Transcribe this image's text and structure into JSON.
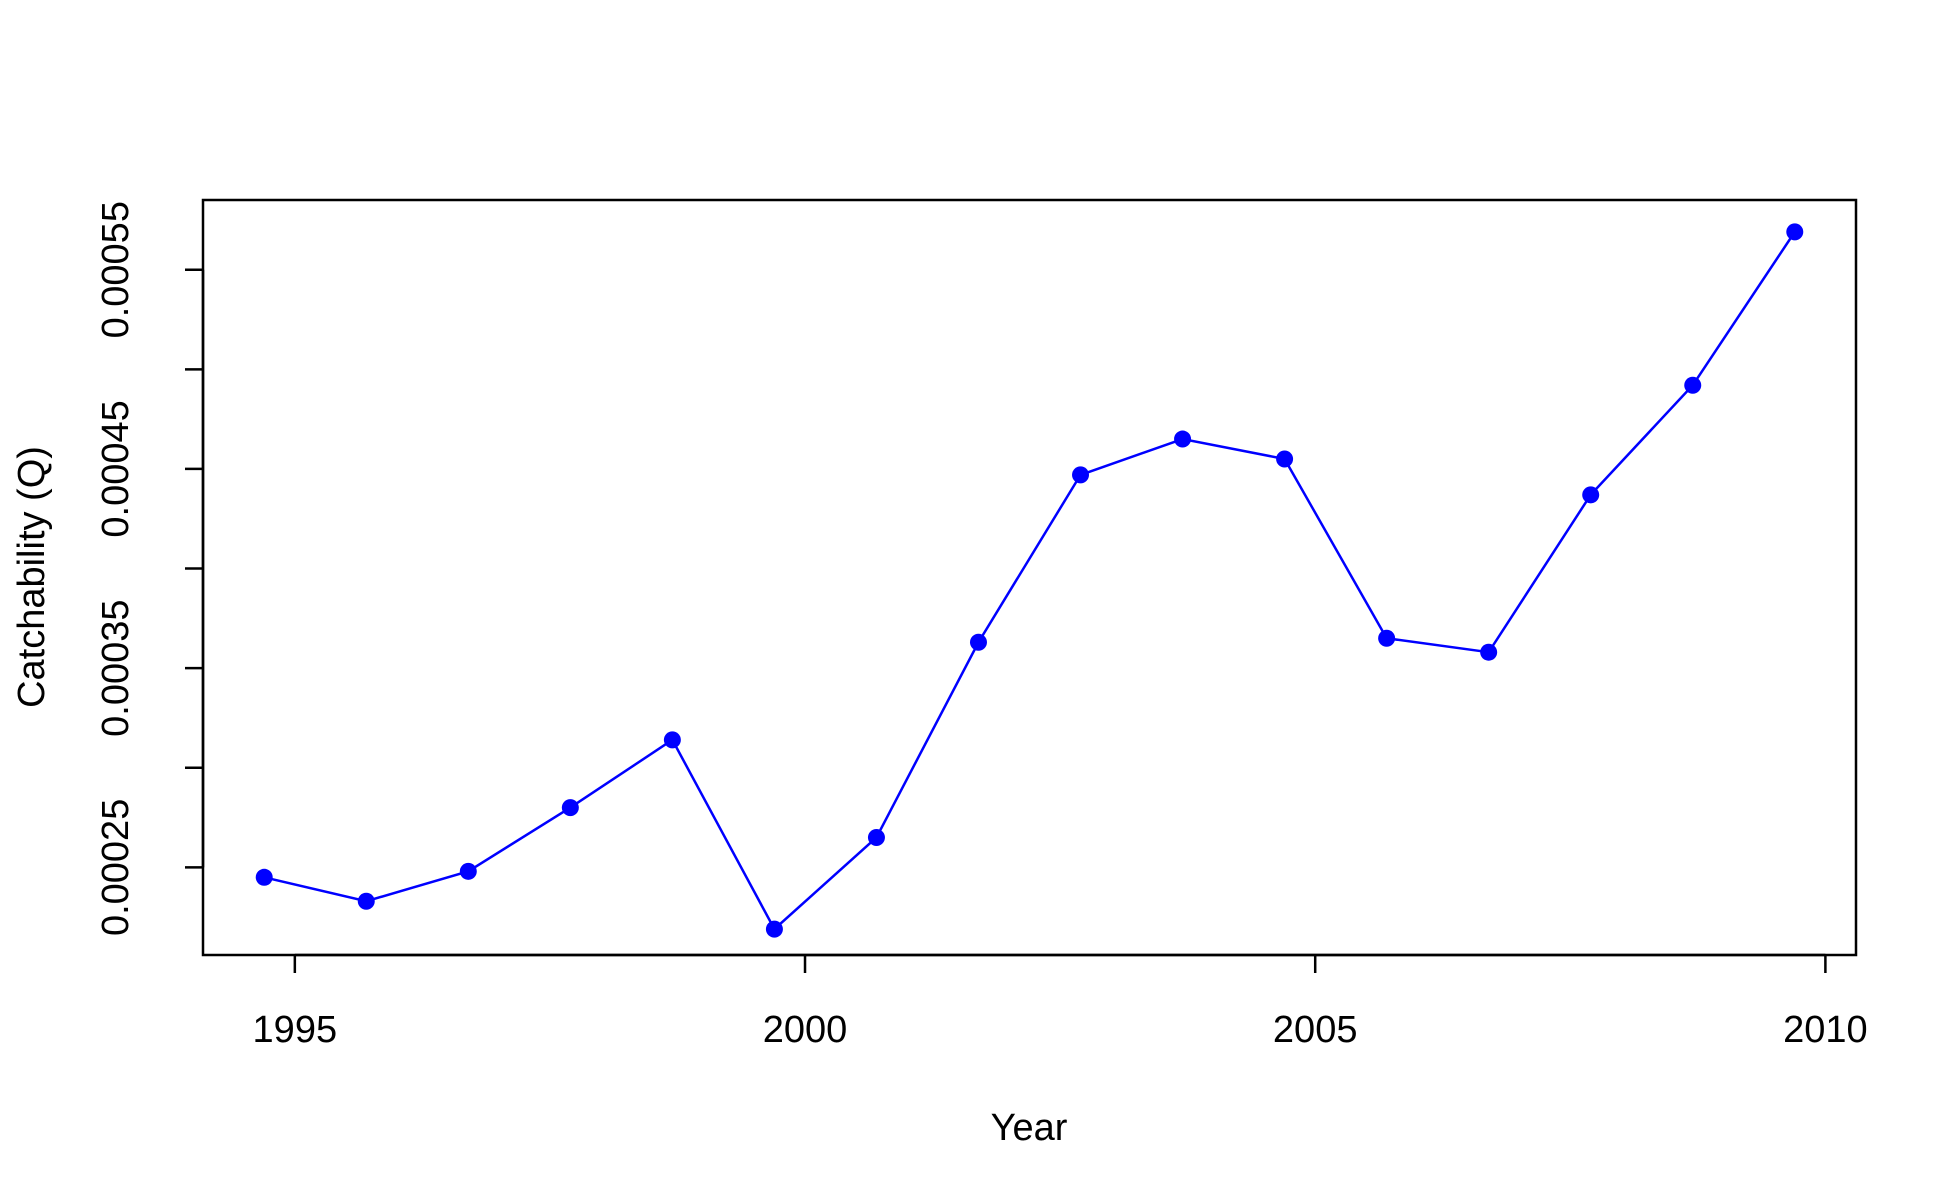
{
  "chart_data": {
    "type": "line",
    "title": "",
    "xlabel": "Year",
    "ylabel": "Catchability (Q)",
    "xlim": [
      1994.1,
      2010.3
    ],
    "ylim": [
      0.000206,
      0.000585
    ],
    "x_ticks": [
      1995,
      2000,
      2005,
      2010
    ],
    "x_tick_labels": [
      "1995",
      "2000",
      "2005",
      "2010"
    ],
    "y_ticks": [
      0.00025,
      0.0003,
      0.00035,
      0.0004,
      0.00045,
      0.0005,
      0.00055
    ],
    "y_tick_labels": [
      "0.00025",
      "",
      "0.00035",
      "",
      "0.00045",
      "",
      "0.00055"
    ],
    "grid": false,
    "legend": "none",
    "color": "#0000ff",
    "x": [
      1994.7,
      1995.7,
      1996.7,
      1997.7,
      1998.7,
      1999.7,
      2000.7,
      2001.7,
      2002.7,
      2003.7,
      2004.7,
      2005.7,
      2006.7,
      2007.7,
      2008.7,
      2009.7
    ],
    "series": [
      {
        "values": [
          0.000245,
          0.000233,
          0.000248,
          0.00028,
          0.000314,
          0.000219,
          0.000265,
          0.000363,
          0.000447,
          0.000465,
          0.000455,
          0.000365,
          0.000358,
          0.000437,
          0.000492,
          0.000569
        ]
      }
    ]
  }
}
